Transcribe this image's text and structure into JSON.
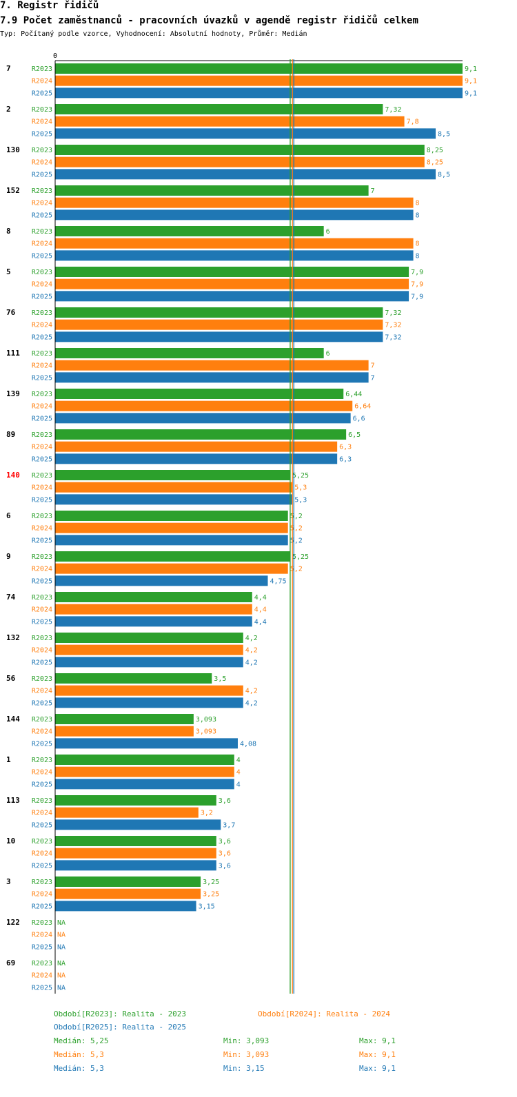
{
  "header": {
    "section": "7. Registr řidičů",
    "title": "7.9 Počet zaměstnanců - pracovních úvazků v agendě registr řidičů celkem",
    "subtitle": "Typ: Počítaný podle vzorce, Vyhodnocení: Absolutní hodnoty, Průměr: Medián"
  },
  "chart_data": {
    "type": "bar",
    "orientation": "horizontal",
    "title": "7.9 Počet zaměstnanců - pracovních úvazků v agendě registr řidičů celkem",
    "axis_zero_label": "0",
    "xlim": [
      0,
      9.1
    ],
    "highlight_color": "#ff0000",
    "na_label": "NA",
    "series": [
      {
        "name": "R2023",
        "color": "#2ca02c"
      },
      {
        "name": "R2024",
        "color": "#ff7f0e"
      },
      {
        "name": "R2025",
        "color": "#1f77b4"
      }
    ],
    "groups": [
      {
        "label": "7",
        "highlight": false,
        "values": [
          9.1,
          9.1,
          9.1
        ],
        "labels": [
          "9,1",
          "9,1",
          "9,1"
        ]
      },
      {
        "label": "2",
        "highlight": false,
        "values": [
          7.32,
          7.8,
          8.5
        ],
        "labels": [
          "7,32",
          "7,8",
          "8,5"
        ]
      },
      {
        "label": "130",
        "highlight": false,
        "values": [
          8.25,
          8.25,
          8.5
        ],
        "labels": [
          "8,25",
          "8,25",
          "8,5"
        ]
      },
      {
        "label": "152",
        "highlight": false,
        "values": [
          7,
          8,
          8
        ],
        "labels": [
          "7",
          "8",
          "8"
        ]
      },
      {
        "label": "8",
        "highlight": false,
        "values": [
          6,
          8,
          8
        ],
        "labels": [
          "6",
          "8",
          "8"
        ]
      },
      {
        "label": "5",
        "highlight": false,
        "values": [
          7.9,
          7.9,
          7.9
        ],
        "labels": [
          "7,9",
          "7,9",
          "7,9"
        ]
      },
      {
        "label": "76",
        "highlight": false,
        "values": [
          7.32,
          7.32,
          7.32
        ],
        "labels": [
          "7,32",
          "7,32",
          "7,32"
        ]
      },
      {
        "label": "111",
        "highlight": false,
        "values": [
          6,
          7,
          7
        ],
        "labels": [
          "6",
          "7",
          "7"
        ]
      },
      {
        "label": "139",
        "highlight": false,
        "values": [
          6.44,
          6.64,
          6.6
        ],
        "labels": [
          "6,44",
          "6,64",
          "6,6"
        ]
      },
      {
        "label": "89",
        "highlight": false,
        "values": [
          6.5,
          6.3,
          6.3
        ],
        "labels": [
          "6,5",
          "6,3",
          "6,3"
        ]
      },
      {
        "label": "140",
        "highlight": true,
        "values": [
          5.25,
          5.3,
          5.3
        ],
        "labels": [
          "5,25",
          "5,3",
          "5,3"
        ]
      },
      {
        "label": "6",
        "highlight": false,
        "values": [
          5.2,
          5.2,
          5.2
        ],
        "labels": [
          "5,2",
          "5,2",
          "5,2"
        ]
      },
      {
        "label": "9",
        "highlight": false,
        "values": [
          5.25,
          5.2,
          4.75
        ],
        "labels": [
          "5,25",
          "5,2",
          "4,75"
        ]
      },
      {
        "label": "74",
        "highlight": false,
        "values": [
          4.4,
          4.4,
          4.4
        ],
        "labels": [
          "4,4",
          "4,4",
          "4,4"
        ]
      },
      {
        "label": "132",
        "highlight": false,
        "values": [
          4.2,
          4.2,
          4.2
        ],
        "labels": [
          "4,2",
          "4,2",
          "4,2"
        ]
      },
      {
        "label": "56",
        "highlight": false,
        "values": [
          3.5,
          4.2,
          4.2
        ],
        "labels": [
          "3,5",
          "4,2",
          "4,2"
        ]
      },
      {
        "label": "144",
        "highlight": false,
        "values": [
          3.093,
          3.093,
          4.08
        ],
        "labels": [
          "3,093",
          "3,093",
          "4,08"
        ]
      },
      {
        "label": "1",
        "highlight": false,
        "values": [
          4,
          4,
          4
        ],
        "labels": [
          "4",
          "4",
          "4"
        ]
      },
      {
        "label": "113",
        "highlight": false,
        "values": [
          3.6,
          3.2,
          3.7
        ],
        "labels": [
          "3,6",
          "3,2",
          "3,7"
        ]
      },
      {
        "label": "10",
        "highlight": false,
        "values": [
          3.6,
          3.6,
          3.6
        ],
        "labels": [
          "3,6",
          "3,6",
          "3,6"
        ]
      },
      {
        "label": "3",
        "highlight": false,
        "values": [
          3.25,
          3.25,
          3.15
        ],
        "labels": [
          "3,25",
          "3,25",
          "3,15"
        ]
      },
      {
        "label": "122",
        "highlight": false,
        "values": [
          null,
          null,
          null
        ],
        "labels": [
          "NA",
          "NA",
          "NA"
        ]
      },
      {
        "label": "69",
        "highlight": false,
        "values": [
          null,
          null,
          null
        ],
        "labels": [
          "NA",
          "NA",
          "NA"
        ]
      }
    ],
    "medians": [
      5.25,
      5.3,
      5.3
    ]
  },
  "legend": {
    "periods": [
      "Období[R2023]: Realita - 2023",
      "Období[R2024]: Realita - 2024",
      "Období[R2025]: Realita - 2025"
    ],
    "stats": [
      {
        "median": "Medián: 5,25",
        "min": "Min: 3,093",
        "max": "Max: 9,1"
      },
      {
        "median": "Medián: 5,3",
        "min": "Min: 3,093",
        "max": "Max: 9,1"
      },
      {
        "median": "Medián: 5,3",
        "min": "Min: 3,15",
        "max": "Max: 9,1"
      }
    ]
  }
}
